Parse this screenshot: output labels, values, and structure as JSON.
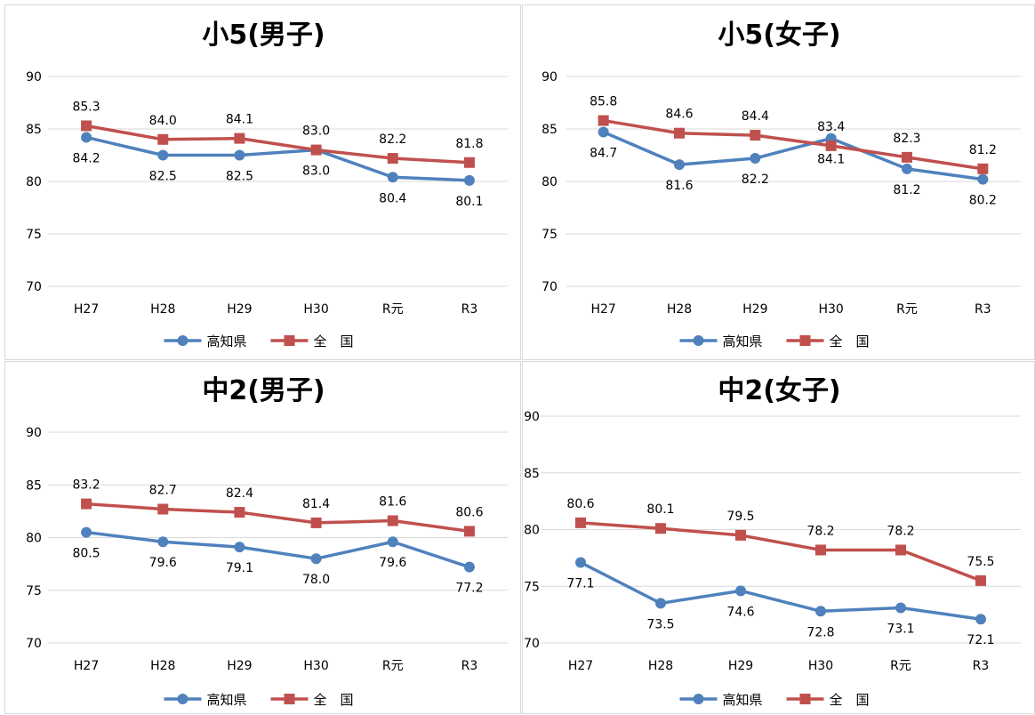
{
  "colors": {
    "kochi": "#4f81bd",
    "national": "#c0504d",
    "grid": "#d9d9d9"
  },
  "chart_data": [
    {
      "type": "line",
      "title": "小5(男子)",
      "categories": [
        "H27",
        "H28",
        "H29",
        "H30",
        "R元",
        "R3"
      ],
      "ylim": [
        70,
        90
      ],
      "yticks": [
        70,
        75,
        80,
        85,
        90
      ],
      "grid": true,
      "legend": "bottom",
      "series": [
        {
          "name": "高知県",
          "marker": "circle",
          "values": [
            84.2,
            82.5,
            82.5,
            83.0,
            80.4,
            80.1
          ]
        },
        {
          "name": "全　国",
          "marker": "square",
          "values": [
            85.3,
            84.0,
            84.1,
            83.0,
            82.2,
            81.8
          ]
        }
      ]
    },
    {
      "type": "line",
      "title": "小5(女子)",
      "categories": [
        "H27",
        "H28",
        "H29",
        "H30",
        "R元",
        "R3"
      ],
      "ylim": [
        70,
        90
      ],
      "yticks": [
        70,
        75,
        80,
        85,
        90
      ],
      "grid": true,
      "legend": "bottom",
      "series": [
        {
          "name": "高知県",
          "marker": "circle",
          "values": [
            84.7,
            81.6,
            82.2,
            84.1,
            81.2,
            80.2
          ]
        },
        {
          "name": "全　国",
          "marker": "square",
          "values": [
            85.8,
            84.6,
            84.4,
            83.4,
            82.3,
            81.2
          ]
        }
      ]
    },
    {
      "type": "line",
      "title": "中2(男子)",
      "categories": [
        "H27",
        "H28",
        "H29",
        "H30",
        "R元",
        "R3"
      ],
      "ylim": [
        70,
        90
      ],
      "yticks": [
        70,
        75,
        80,
        85,
        90
      ],
      "grid": true,
      "legend": "bottom",
      "series": [
        {
          "name": "高知県",
          "marker": "circle",
          "values": [
            80.5,
            79.6,
            79.1,
            78.0,
            79.6,
            77.2
          ]
        },
        {
          "name": "全　国",
          "marker": "square",
          "values": [
            83.2,
            82.7,
            82.4,
            81.4,
            81.6,
            80.6
          ]
        }
      ]
    },
    {
      "type": "line",
      "title": "中2(女子)",
      "categories": [
        "H27",
        "H28",
        "H29",
        "H30",
        "R元",
        "R3"
      ],
      "ylim": [
        70,
        90
      ],
      "yticks": [
        70,
        75,
        80,
        85,
        90
      ],
      "grid": true,
      "legend": "bottom",
      "series": [
        {
          "name": "高知県",
          "marker": "circle",
          "values": [
            77.1,
            73.5,
            74.6,
            72.8,
            73.1,
            72.1
          ]
        },
        {
          "name": "全　国",
          "marker": "square",
          "values": [
            80.6,
            80.1,
            79.5,
            78.2,
            78.2,
            75.5
          ]
        }
      ]
    }
  ]
}
